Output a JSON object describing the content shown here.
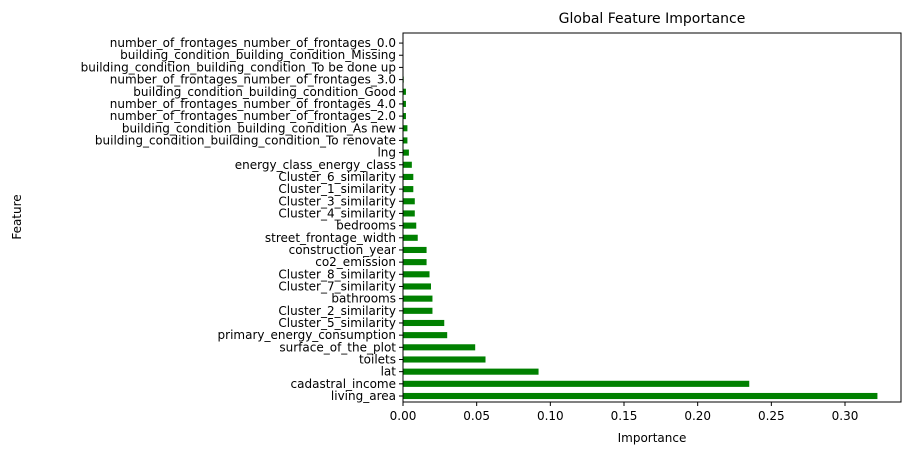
{
  "chart_data": {
    "type": "bar",
    "orientation": "horizontal",
    "title": "Global Feature Importance",
    "xlabel": "Importance",
    "ylabel": "Feature",
    "xlim": [
      0,
      0.338
    ],
    "xticks": [
      "0.00",
      "0.05",
      "0.10",
      "0.15",
      "0.20",
      "0.25",
      "0.30"
    ],
    "xtick_values": [
      0,
      0.05,
      0.1,
      0.15,
      0.2,
      0.25,
      0.3
    ],
    "bar_color": "#008000",
    "grid": false,
    "categories": [
      "living_area",
      "cadastral_income",
      "lat",
      "toilets",
      "surface_of_the_plot",
      "primary_energy_consumption",
      "Cluster_5_similarity",
      "Cluster_2_similarity",
      "bathrooms",
      "Cluster_7_similarity",
      "Cluster_8_similarity",
      "co2_emission",
      "construction_year",
      "street_frontage_width",
      "bedrooms",
      "Cluster_4_similarity",
      "Cluster_3_similarity",
      "Cluster_1_similarity",
      "Cluster_6_similarity",
      "energy_class_energy_class",
      "lng",
      "building_condition_building_condition_To renovate",
      "building_condition_building_condition_As new",
      "number_of_frontages_number_of_frontages_2.0",
      "number_of_frontages_number_of_frontages_4.0",
      "building_condition_building_condition_Good",
      "number_of_frontages_number_of_frontages_3.0",
      "building_condition_building_condition_To be done up",
      "building_condition_building_condition_Missing",
      "number_of_frontages_number_of_frontages_0.0"
    ],
    "values": [
      0.322,
      0.235,
      0.092,
      0.056,
      0.049,
      0.03,
      0.028,
      0.02,
      0.02,
      0.019,
      0.018,
      0.016,
      0.016,
      0.01,
      0.009,
      0.008,
      0.008,
      0.007,
      0.007,
      0.006,
      0.004,
      0.003,
      0.003,
      0.002,
      0.002,
      0.002,
      0.0005,
      0.0003,
      0.0002,
      0.0001
    ]
  }
}
